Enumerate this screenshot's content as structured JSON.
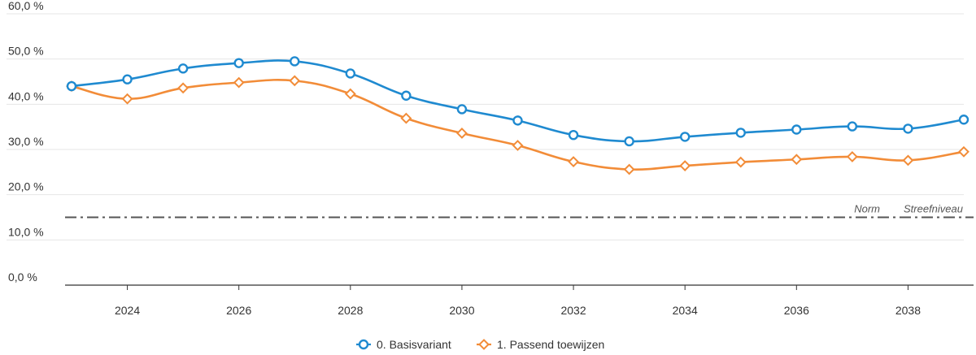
{
  "chart_data": {
    "type": "line",
    "title": "",
    "xlabel": "",
    "ylabel": "",
    "x": [
      2023,
      2024,
      2025,
      2026,
      2027,
      2028,
      2029,
      2030,
      2031,
      2032,
      2033,
      2034,
      2035,
      2036,
      2037,
      2038,
      2039
    ],
    "xlim": [
      2023,
      2039
    ],
    "ylim": [
      0,
      60
    ],
    "y_ticks": [
      "0,0 %",
      "10,0 %",
      "20,0 %",
      "30,0 %",
      "40,0 %",
      "50,0 %",
      "60,0 %"
    ],
    "x_ticks": [
      "2024",
      "2026",
      "2028",
      "2030",
      "2032",
      "2034",
      "2036",
      "2038"
    ],
    "grid": true,
    "legend_position": "bottom",
    "series": [
      {
        "name": "0. Basisvariant",
        "color": "#1f8ad0",
        "marker": "circle",
        "values": [
          44.0,
          45.5,
          47.9,
          49.1,
          49.5,
          46.8,
          41.9,
          38.9,
          36.4,
          33.2,
          31.8,
          32.8,
          33.7,
          34.4,
          35.1,
          34.6,
          36.6
        ]
      },
      {
        "name": "1. Passend toewijzen",
        "color": "#f28c38",
        "marker": "diamond",
        "values": [
          44.0,
          41.2,
          43.6,
          44.8,
          45.2,
          42.3,
          36.9,
          33.6,
          30.9,
          27.3,
          25.6,
          26.4,
          27.2,
          27.8,
          28.4,
          27.6,
          29.5
        ]
      }
    ],
    "reference_line": {
      "value": 15.0,
      "color": "#555555",
      "labels": [
        "Norm",
        "Streefniveau"
      ]
    }
  }
}
